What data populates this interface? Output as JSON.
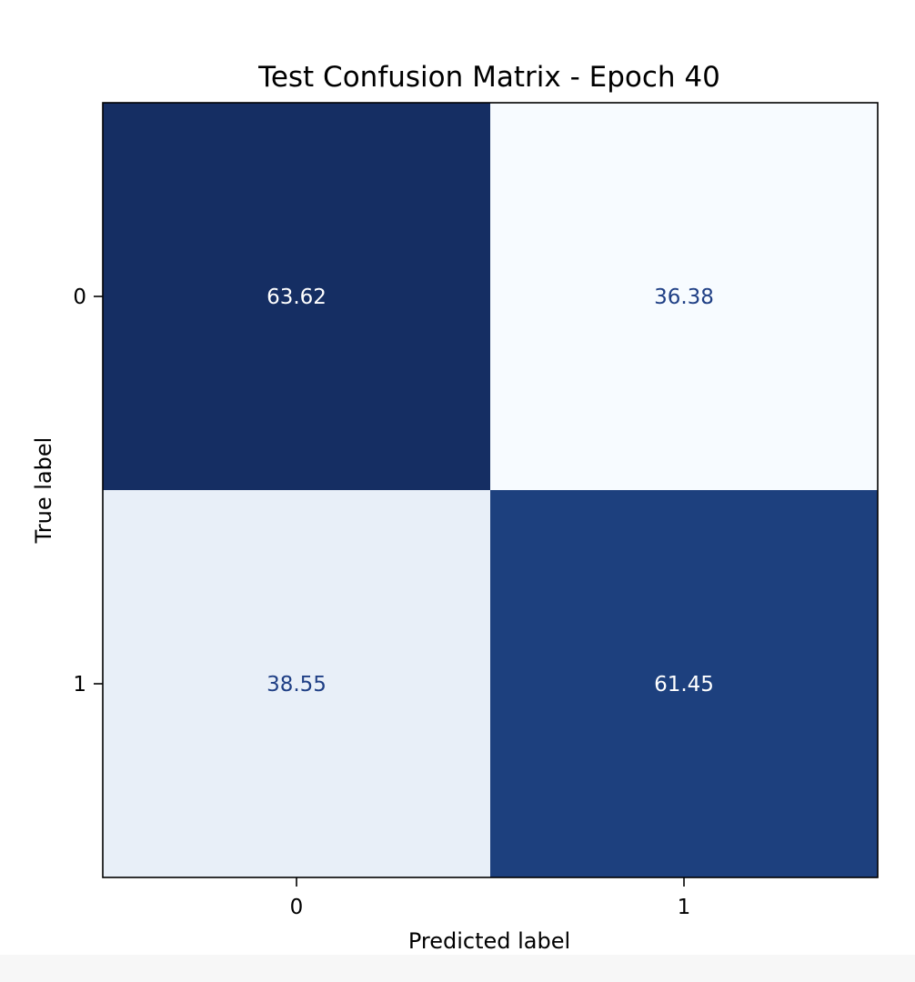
{
  "chart_data": {
    "type": "heatmap",
    "title": "Test Confusion Matrix - Epoch 40",
    "xlabel": "Predicted label",
    "ylabel": "True label",
    "x_categories": [
      "0",
      "1"
    ],
    "y_categories": [
      "0",
      "1"
    ],
    "values": [
      [
        63.62,
        36.38
      ],
      [
        38.55,
        61.45
      ]
    ],
    "value_labels": [
      [
        "63.62",
        "36.38"
      ],
      [
        "38.55",
        "61.45"
      ]
    ],
    "colormap": "Blues",
    "grid": false,
    "colorbar": false
  },
  "colors": {
    "cell_high": "#152e63",
    "cell_mid_high": "#1f4585",
    "cell_mid_low": "#e8eff8",
    "cell_low": "#f7fbff",
    "text_on_dark": "#ffffff",
    "text_on_light": "#1f3f85",
    "axis": "#000000"
  }
}
